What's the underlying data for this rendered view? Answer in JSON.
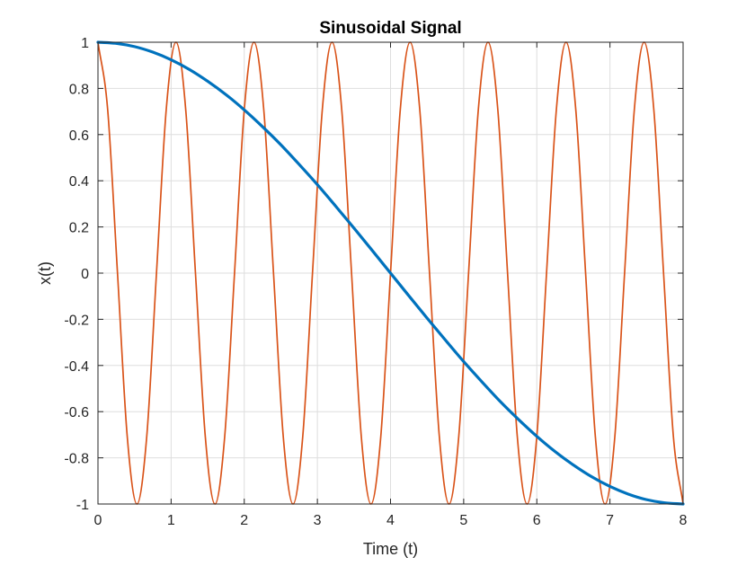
{
  "chart_data": {
    "type": "line",
    "title": "Sinusoidal Signal",
    "xlabel": "Time (t)",
    "ylabel": "x(t)",
    "xlim": [
      0,
      8
    ],
    "ylim": [
      -1,
      1
    ],
    "x_ticks": [
      0,
      1,
      2,
      3,
      4,
      5,
      6,
      7,
      8
    ],
    "x_tick_labels": [
      "0",
      "1",
      "2",
      "3",
      "4",
      "5",
      "6",
      "7",
      "8"
    ],
    "y_ticks": [
      -1,
      -0.8,
      -0.6,
      -0.4,
      -0.2,
      0,
      0.2,
      0.4,
      0.6,
      0.8,
      1
    ],
    "y_tick_labels": [
      "-1",
      "-0.8",
      "-0.6",
      "-0.4",
      "-0.2",
      "0",
      "0.2",
      "0.4",
      "0.6",
      "0.8",
      "1"
    ],
    "grid": true,
    "legend": "none",
    "series": [
      {
        "color": "#0072BD",
        "line_width": "thick",
        "x": [
          0,
          0.25,
          0.5,
          0.75,
          1,
          1.25,
          1.5,
          1.75,
          2,
          2.25,
          2.5,
          2.75,
          3,
          3.25,
          3.5,
          3.75,
          4,
          4.25,
          4.5,
          4.75,
          5,
          5.25,
          5.5,
          5.75,
          6,
          6.25,
          6.5,
          6.75,
          7,
          7.25,
          7.5,
          7.75,
          8
        ],
        "values": [
          1,
          0.995,
          0.981,
          0.957,
          0.924,
          0.882,
          0.831,
          0.773,
          0.707,
          0.634,
          0.556,
          0.471,
          0.383,
          0.29,
          0.195,
          0.098,
          0,
          -0.098,
          -0.195,
          -0.29,
          -0.383,
          -0.471,
          -0.556,
          -0.634,
          -0.707,
          -0.773,
          -0.831,
          -0.882,
          -0.924,
          -0.957,
          -0.981,
          -0.995,
          -1
        ]
      },
      {
        "color": "#D95319",
        "line_width": "thin",
        "x": [
          0,
          0.133,
          0.267,
          0.4,
          0.533,
          0.667,
          0.8,
          0.933,
          1.067,
          1.2,
          1.333,
          1.467,
          1.6,
          1.733,
          1.867,
          2,
          2.133,
          2.267,
          2.4,
          2.533,
          2.667,
          2.8,
          2.933,
          3.067,
          3.2,
          3.333,
          3.467,
          3.6,
          3.733,
          3.867,
          4,
          4.133,
          4.267,
          4.4,
          4.533,
          4.667,
          4.8,
          4.933,
          5.067,
          5.2,
          5.333,
          5.467,
          5.6,
          5.733,
          5.867,
          6,
          6.133,
          6.267,
          6.4,
          6.533,
          6.667,
          6.8,
          6.933,
          7.067,
          7.2,
          7.333,
          7.467,
          7.6,
          7.733,
          7.867,
          8
        ],
        "values": [
          1,
          0.707,
          0,
          -0.707,
          -1,
          -0.707,
          0,
          0.707,
          1,
          0.707,
          0,
          -0.707,
          -1,
          -0.707,
          0,
          0.707,
          1,
          0.707,
          0,
          -0.707,
          -1,
          -0.707,
          0,
          0.707,
          1,
          0.707,
          0,
          -0.707,
          -1,
          -0.707,
          0,
          0.707,
          1,
          0.707,
          0,
          -0.707,
          -1,
          -0.707,
          0,
          0.707,
          1,
          0.707,
          0,
          -0.707,
          -1,
          -0.707,
          0,
          0.707,
          1,
          0.707,
          0,
          -0.707,
          -1,
          -0.707,
          0,
          0.707,
          1,
          0.707,
          0,
          -0.707,
          -1
        ]
      }
    ]
  }
}
